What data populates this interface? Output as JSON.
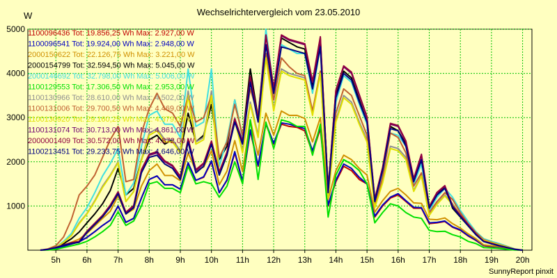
{
  "chart_data": {
    "type": "line",
    "title": "Wechselrichtervergleich vom 23.05.2010",
    "ylabel": "W",
    "ylim": [
      0,
      5000
    ],
    "y_ticks": [
      "1000",
      "2000",
      "3000",
      "4000",
      "5000"
    ],
    "x_ticks": [
      "5h",
      "6h",
      "7h",
      "8h",
      "9h",
      "10h",
      "11h",
      "12h",
      "13h",
      "14h",
      "15h",
      "16h",
      "17h",
      "18h",
      "19h",
      "20h"
    ],
    "xlim": [
      4.1,
      20.3
    ],
    "grid": true,
    "legend_position": "top-left",
    "footer": "SunnyReport pinxit",
    "x": [
      4.5,
      4.75,
      5,
      5.25,
      5.5,
      5.75,
      6,
      6.25,
      6.5,
      6.75,
      7,
      7.25,
      7.5,
      7.75,
      8,
      8.25,
      8.5,
      8.75,
      9,
      9.25,
      9.5,
      9.75,
      10,
      10.25,
      10.5,
      10.75,
      11,
      11.25,
      11.5,
      11.75,
      12,
      12.25,
      12.5,
      12.75,
      13,
      13.25,
      13.5,
      13.75,
      14,
      14.25,
      14.5,
      14.75,
      15,
      15.25,
      15.5,
      15.75,
      16,
      16.25,
      16.5,
      16.75,
      17,
      17.25,
      17.5,
      17.75,
      18,
      18.25,
      18.5,
      18.75,
      19,
      19.25,
      19.5,
      19.75,
      20
    ],
    "series": [
      {
        "name": "1100096436 Tot: 19.856,25 Wh Max: 2.927,00 W",
        "color": "#c00000",
        "values": [
          0,
          10,
          40,
          90,
          140,
          190,
          290,
          420,
          560,
          680,
          1000,
          630,
          720,
          1180,
          1600,
          1680,
          1480,
          1480,
          1380,
          1960,
          1580,
          1650,
          2000,
          1300,
          1580,
          2200,
          1550,
          2700,
          1900,
          2850,
          2400,
          2850,
          2800,
          2780,
          2700,
          2200,
          2750,
          1000,
          1550,
          1900,
          1800,
          1600,
          1500,
          750,
          1000,
          1180,
          1250,
          1100,
          950,
          950,
          600,
          620,
          650,
          520,
          450,
          320,
          220,
          100,
          80,
          70,
          40,
          10,
          0
        ]
      },
      {
        "name": "1100096541 Tot: 19.924,00 Wh Max: 2.948,00 W",
        "color": "#0000c0",
        "values": [
          0,
          10,
          40,
          90,
          140,
          190,
          290,
          420,
          560,
          680,
          1000,
          630,
          720,
          1180,
          1600,
          1680,
          1480,
          1480,
          1380,
          1980,
          1580,
          1660,
          2020,
          1300,
          1590,
          2230,
          1560,
          2720,
          1920,
          2870,
          2420,
          2880,
          2850,
          2800,
          2750,
          2250,
          2800,
          1020,
          1580,
          1950,
          1850,
          1650,
          1500,
          770,
          1020,
          1200,
          1280,
          1120,
          970,
          960,
          620,
          630,
          660,
          530,
          460,
          330,
          230,
          110,
          90,
          70,
          40,
          10,
          0
        ]
      },
      {
        "name": "2000150622 Tot: 22.126,75 Wh Max: 3.221,00 W",
        "color": "#d09000",
        "values": [
          0,
          20,
          60,
          120,
          180,
          250,
          380,
          550,
          720,
          880,
          1230,
          820,
          930,
          1450,
          1800,
          1950,
          1690,
          1690,
          1570,
          2200,
          1800,
          1880,
          2250,
          1480,
          1790,
          2480,
          1780,
          2950,
          2150,
          3100,
          2600,
          3150,
          3050,
          3050,
          2980,
          2450,
          3000,
          1150,
          1800,
          2150,
          2050,
          1850,
          1700,
          860,
          1120,
          1330,
          1400,
          1250,
          1070,
          1060,
          700,
          690,
          730,
          600,
          500,
          370,
          260,
          120,
          100,
          80,
          50,
          10,
          0
        ]
      },
      {
        "name": "2000154799 Tot: 32.594,50 Wh Max: 5.045,00 W",
        "color": "#000000",
        "values": [
          0,
          20,
          60,
          150,
          260,
          410,
          620,
          820,
          1050,
          1350,
          1850,
          1250,
          1400,
          2050,
          2500,
          2600,
          2400,
          2500,
          2200,
          3100,
          2450,
          2600,
          3300,
          2050,
          2350,
          3400,
          2550,
          4100,
          3000,
          4900,
          3600,
          4800,
          4700,
          4600,
          4550,
          3700,
          4700,
          1400,
          3500,
          4050,
          3900,
          3400,
          2900,
          1150,
          1800,
          2800,
          2700,
          2400,
          1550,
          2000,
          950,
          1250,
          1450,
          950,
          750,
          550,
          350,
          200,
          150,
          100,
          60,
          20,
          0
        ]
      },
      {
        "name": "2000146692 Tot: 32.798,00 Wh Max: 5.006,00 W",
        "color": "#40e0e0",
        "values": [
          0,
          20,
          60,
          200,
          380,
          720,
          960,
          1300,
          1680,
          1960,
          2300,
          1250,
          1520,
          2350,
          3050,
          3150,
          2850,
          2850,
          2550,
          4100,
          2800,
          2900,
          4100,
          1900,
          2500,
          3400,
          2550,
          3800,
          2950,
          5000,
          3650,
          4650,
          4550,
          4450,
          4450,
          3550,
          4600,
          1350,
          3350,
          3950,
          3800,
          3300,
          2850,
          1100,
          1750,
          2650,
          2600,
          2350,
          1500,
          1950,
          900,
          1200,
          1400,
          1200,
          900,
          650,
          420,
          260,
          200,
          150,
          90,
          30,
          0
        ]
      },
      {
        "name": "1100129553 Tot: 17.306,50 Wh Max: 2.953,00 W",
        "color": "#00e000",
        "values": [
          0,
          5,
          20,
          60,
          100,
          140,
          200,
          300,
          420,
          560,
          870,
          560,
          660,
          1000,
          1500,
          1550,
          1400,
          1400,
          1300,
          1900,
          1500,
          1550,
          1500,
          1200,
          1450,
          2000,
          1500,
          2950,
          1600,
          2900,
          2300,
          2950,
          2900,
          2800,
          2800,
          2150,
          2850,
          750,
          1700,
          2050,
          1950,
          1800,
          1500,
          620,
          850,
          1050,
          1000,
          850,
          750,
          720,
          450,
          420,
          430,
          350,
          300,
          200,
          150,
          60,
          50,
          40,
          20,
          5,
          0
        ]
      },
      {
        "name": "1100130966 Tot: 28.610,00 Wh Max: 4.502,00 W",
        "color": "#909090",
        "values": [
          0,
          20,
          60,
          180,
          330,
          620,
          830,
          1120,
          1450,
          1700,
          2000,
          1100,
          1330,
          2050,
          2650,
          2750,
          2500,
          2500,
          2250,
          3600,
          2450,
          2550,
          3600,
          1700,
          2200,
          3000,
          2250,
          3350,
          2600,
          4400,
          3200,
          4100,
          4000,
          3950,
          3900,
          3100,
          4050,
          1200,
          2950,
          3500,
          3350,
          2900,
          2500,
          970,
          1550,
          2350,
          2300,
          2100,
          1350,
          1700,
          800,
          1050,
          1250,
          1050,
          800,
          580,
          380,
          230,
          180,
          130,
          80,
          25,
          0
        ]
      },
      {
        "name": "1100131006 Tot: 29.700,50 Wh Max: 4.469,00 W",
        "color": "#c06030",
        "values": [
          0,
          30,
          100,
          300,
          700,
          1250,
          1450,
          1700,
          2100,
          2500,
          2800,
          1550,
          1600,
          2650,
          3200,
          3550,
          3200,
          3100,
          2800,
          3500,
          2900,
          3000,
          3500,
          2100,
          2450,
          3300,
          2600,
          3650,
          3050,
          4450,
          3400,
          4350,
          4150,
          4000,
          3950,
          3150,
          4050,
          1200,
          3100,
          3650,
          3500,
          3050,
          2600,
          1000,
          1650,
          2650,
          2550,
          2200,
          1450,
          1750,
          850,
          1100,
          1300,
          1150,
          850,
          600,
          400,
          240,
          180,
          130,
          80,
          25,
          0
        ]
      },
      {
        "name": "1100130920 Tot: 29.160,25 Wh Max: 4.379,00 W",
        "color": "#e0e000",
        "values": [
          0,
          20,
          60,
          180,
          330,
          600,
          820,
          1100,
          1420,
          1680,
          1980,
          1100,
          1320,
          2020,
          2600,
          2700,
          2450,
          2450,
          2200,
          3500,
          2400,
          2500,
          3500,
          1700,
          2150,
          2950,
          2200,
          3300,
          2550,
          4350,
          3150,
          4050,
          3950,
          3900,
          3850,
          3050,
          4000,
          1180,
          2900,
          3450,
          3300,
          2850,
          2450,
          960,
          1520,
          2300,
          2250,
          2050,
          1330,
          1680,
          790,
          1040,
          1230,
          1030,
          790,
          570,
          370,
          225,
          175,
          125,
          75,
          22,
          0
        ]
      },
      {
        "name": "1100131074 Tot: 30.713,00 Wh Max: 4.861,00 W",
        "color": "#700070",
        "values": [
          0,
          20,
          60,
          120,
          160,
          180,
          420,
          600,
          780,
          1000,
          1300,
          850,
          1000,
          1800,
          2150,
          2200,
          2000,
          1900,
          1650,
          2500,
          1800,
          1950,
          2450,
          1750,
          2200,
          2950,
          2450,
          3900,
          2950,
          4850,
          3650,
          4850,
          4750,
          4700,
          4650,
          3800,
          4800,
          1350,
          3600,
          4150,
          4000,
          3500,
          3000,
          1150,
          1850,
          2850,
          2800,
          2450,
          1600,
          2150,
          980,
          1300,
          1450,
          1000,
          780,
          570,
          360,
          200,
          150,
          100,
          60,
          20,
          0
        ]
      },
      {
        "name": "2000001409 Tot: 30.572,00 Wh Max: 4.872,00 W",
        "color": "#900040",
        "values": [
          0,
          20,
          60,
          120,
          170,
          200,
          430,
          610,
          790,
          1020,
          1320,
          860,
          1010,
          1820,
          2170,
          2230,
          2020,
          1920,
          1670,
          2520,
          1820,
          1970,
          2470,
          1770,
          2220,
          2970,
          2470,
          3930,
          2970,
          4870,
          3670,
          4870,
          4770,
          4720,
          4670,
          3820,
          4830,
          1370,
          3620,
          4170,
          4030,
          3520,
          3020,
          1160,
          1870,
          2870,
          2820,
          2470,
          1620,
          2170,
          990,
          1310,
          1460,
          1010,
          790,
          580,
          370,
          205,
          155,
          105,
          62,
          20,
          0
        ]
      },
      {
        "name": "1100213451 Tot: 29.233,75 Wh Max: 4.646,00 W",
        "color": "#000080",
        "values": [
          0,
          20,
          60,
          110,
          150,
          180,
          400,
          580,
          760,
          980,
          1280,
          820,
          960,
          1750,
          2100,
          2150,
          1950,
          1850,
          1600,
          2450,
          1750,
          1900,
          2400,
          1700,
          2150,
          2900,
          2400,
          3800,
          2900,
          4650,
          3550,
          4600,
          4550,
          4500,
          4450,
          3650,
          4600,
          1300,
          3450,
          4000,
          3850,
          3350,
          2900,
          1100,
          1800,
          2750,
          2700,
          2350,
          1550,
          2050,
          950,
          1250,
          1400,
          980,
          760,
          550,
          350,
          195,
          145,
          100,
          60,
          20,
          0
        ]
      }
    ]
  }
}
